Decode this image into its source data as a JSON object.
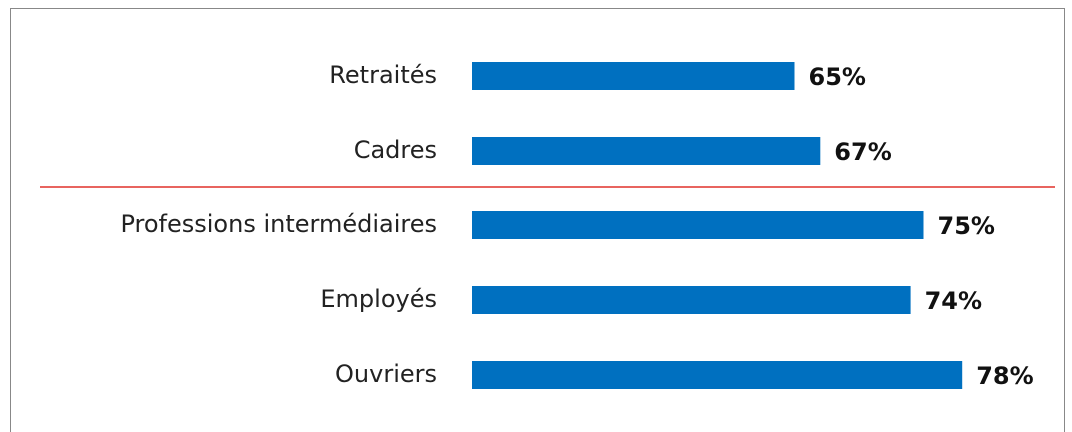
{
  "chart_data": {
    "type": "hbar",
    "categories": [
      "Retraités",
      "Cadres",
      "Professions intermédiaires",
      "Employés",
      "Ouvriers"
    ],
    "values": [
      65,
      67,
      75,
      74,
      78
    ],
    "value_labels": [
      "65%",
      "67%",
      "75%",
      "74%",
      "78%"
    ],
    "color": "#0070c0",
    "xlim": [
      40,
      80
    ]
  }
}
